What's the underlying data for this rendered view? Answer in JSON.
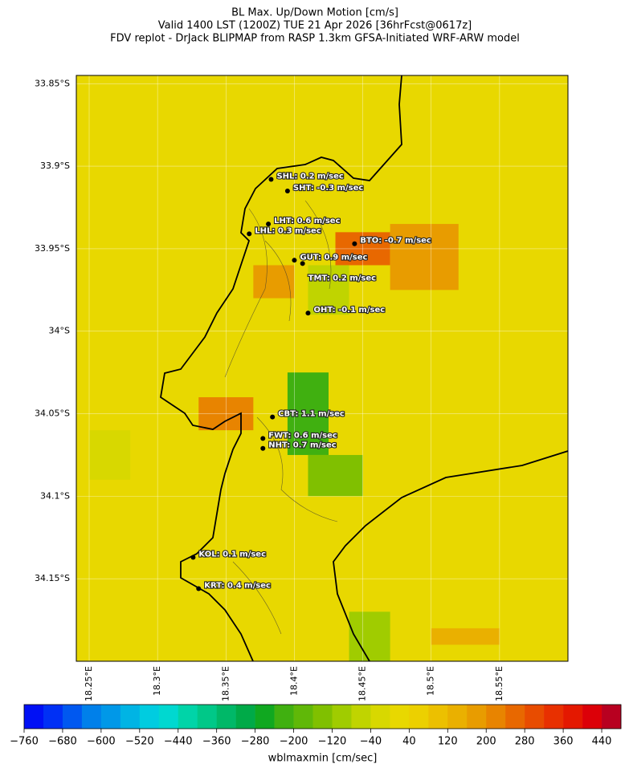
{
  "chart_data": {
    "type": "map",
    "title": [
      "BL Max. Up/Down Motion [cm/s]",
      "Valid 1400 LST (1200Z) TUE 21 Apr 2026 [36hrFcst@0617z]",
      "FDV replot - DrJack BLIPMAP from RASP 1.3km GFSA-Initiated WRF-ARW model"
    ],
    "xlim": [
      18.2406,
      18.6
    ],
    "ylim": [
      -34.2,
      -33.845
    ],
    "xticks": [
      {
        "value": 18.25,
        "label": "18.25°E"
      },
      {
        "value": 18.3,
        "label": "18.3°E"
      },
      {
        "value": 18.35,
        "label": "18.35°E"
      },
      {
        "value": 18.4,
        "label": "18.4°E"
      },
      {
        "value": 18.45,
        "label": "18.45°E"
      },
      {
        "value": 18.5,
        "label": "18.5°E"
      },
      {
        "value": 18.55,
        "label": "18.55°E"
      }
    ],
    "yticks": [
      {
        "value": -33.85,
        "label": "33.85°S"
      },
      {
        "value": -33.9,
        "label": "33.9°S"
      },
      {
        "value": -33.95,
        "label": "33.95°S"
      },
      {
        "value": -34.0,
        "label": "34°S"
      },
      {
        "value": -34.05,
        "label": "34.05°S"
      },
      {
        "value": -34.1,
        "label": "34.1°S"
      },
      {
        "value": -34.15,
        "label": "34.15°S"
      }
    ],
    "background_value": 20,
    "patches": [
      {
        "lon": [
          18.43,
          18.47
        ],
        "lat": [
          -33.96,
          -33.94
        ],
        "value": 260
      },
      {
        "lon": [
          18.47,
          18.52
        ],
        "lat": [
          -33.975,
          -33.935
        ],
        "value": 160
      },
      {
        "lon": [
          18.37,
          18.4
        ],
        "lat": [
          -33.98,
          -33.96
        ],
        "value": 160
      },
      {
        "lon": [
          18.41,
          18.44
        ],
        "lat": [
          -33.99,
          -33.96
        ],
        "value": -80
      },
      {
        "lon": [
          18.395,
          18.425
        ],
        "lat": [
          -34.075,
          -34.025
        ],
        "value": -240
      },
      {
        "lon": [
          18.41,
          18.45
        ],
        "lat": [
          -34.1,
          -34.075
        ],
        "value": -160
      },
      {
        "lon": [
          18.33,
          18.37
        ],
        "lat": [
          -34.06,
          -34.04
        ],
        "value": 200
      },
      {
        "lon": [
          18.25,
          18.28
        ],
        "lat": [
          -34.09,
          -34.06
        ],
        "value": -40
      },
      {
        "lon": [
          18.44,
          18.47
        ],
        "lat": [
          -34.2,
          -34.17
        ],
        "value": -120
      },
      {
        "lon": [
          18.5,
          18.55
        ],
        "lat": [
          -34.19,
          -34.18
        ],
        "value": 120
      }
    ],
    "stations": [
      {
        "label": "SHL: 0.2 m/sec",
        "lon": 18.383,
        "lat": -33.908
      },
      {
        "label": "SHT: -0.3 m/sec",
        "lon": 18.395,
        "lat": -33.915
      },
      {
        "label": "LHT: 0.6 m/sec",
        "lon": 18.381,
        "lat": -33.935
      },
      {
        "label": "LHL: 0.3 m/sec",
        "lon": 18.367,
        "lat": -33.941
      },
      {
        "label": "BTO: -0.7 m/sec",
        "lon": 18.444,
        "lat": -33.947
      },
      {
        "label": "GUT: 0.9 m/sec",
        "lon": 18.4,
        "lat": -33.957
      },
      {
        "label": "TMT: 0.2 m/sec",
        "lon": 18.406,
        "lat": -33.959
      },
      {
        "label": "OHT: -0.1 m/sec",
        "lon": 18.41,
        "lat": -33.989
      },
      {
        "label": "CBT: 1.1 m/sec",
        "lon": 18.384,
        "lat": -34.052
      },
      {
        "label": "FWT: 0.6 m/sec",
        "lon": 18.377,
        "lat": -34.065
      },
      {
        "label": "NHT: 0.7 m/sec",
        "lon": 18.377,
        "lat": -34.071
      },
      {
        "label": "KOL: 0.1 m/sec",
        "lon": 18.326,
        "lat": -34.137
      },
      {
        "label": "KRT: 0.4 m/sec",
        "lon": 18.33,
        "lat": -34.156
      }
    ],
    "colorbar": {
      "label": "wblmaxmin [cm/sec]",
      "clim": [
        -760,
        480
      ],
      "colors": [
        "#0010f5",
        "#0030f5",
        "#0058f0",
        "#0080ea",
        "#0098e8",
        "#00b4e4",
        "#00cce0",
        "#00d8d0",
        "#00d4a8",
        "#00c888",
        "#00b868",
        "#00aa48",
        "#10a820",
        "#40b010",
        "#60b808",
        "#80c000",
        "#a0cc00",
        "#c0d400",
        "#d8d800",
        "#e8d800",
        "#ecd000",
        "#ecc000",
        "#eab000",
        "#e89c00",
        "#e88400",
        "#e86800",
        "#e84c00",
        "#e83000",
        "#e41800",
        "#dc0008",
        "#b80020"
      ],
      "ticks": [
        {
          "value": -760,
          "label": "−760"
        },
        {
          "value": -680,
          "label": "−680"
        },
        {
          "value": -600,
          "label": "−600"
        },
        {
          "value": -520,
          "label": "−520"
        },
        {
          "value": -440,
          "label": "−440"
        },
        {
          "value": -360,
          "label": "−360"
        },
        {
          "value": -280,
          "label": "−280"
        },
        {
          "value": -200,
          "label": "−200"
        },
        {
          "value": -120,
          "label": "−120"
        },
        {
          "value": -40,
          "label": "−40"
        },
        40,
        120,
        200,
        280,
        360,
        440
      ]
    }
  }
}
